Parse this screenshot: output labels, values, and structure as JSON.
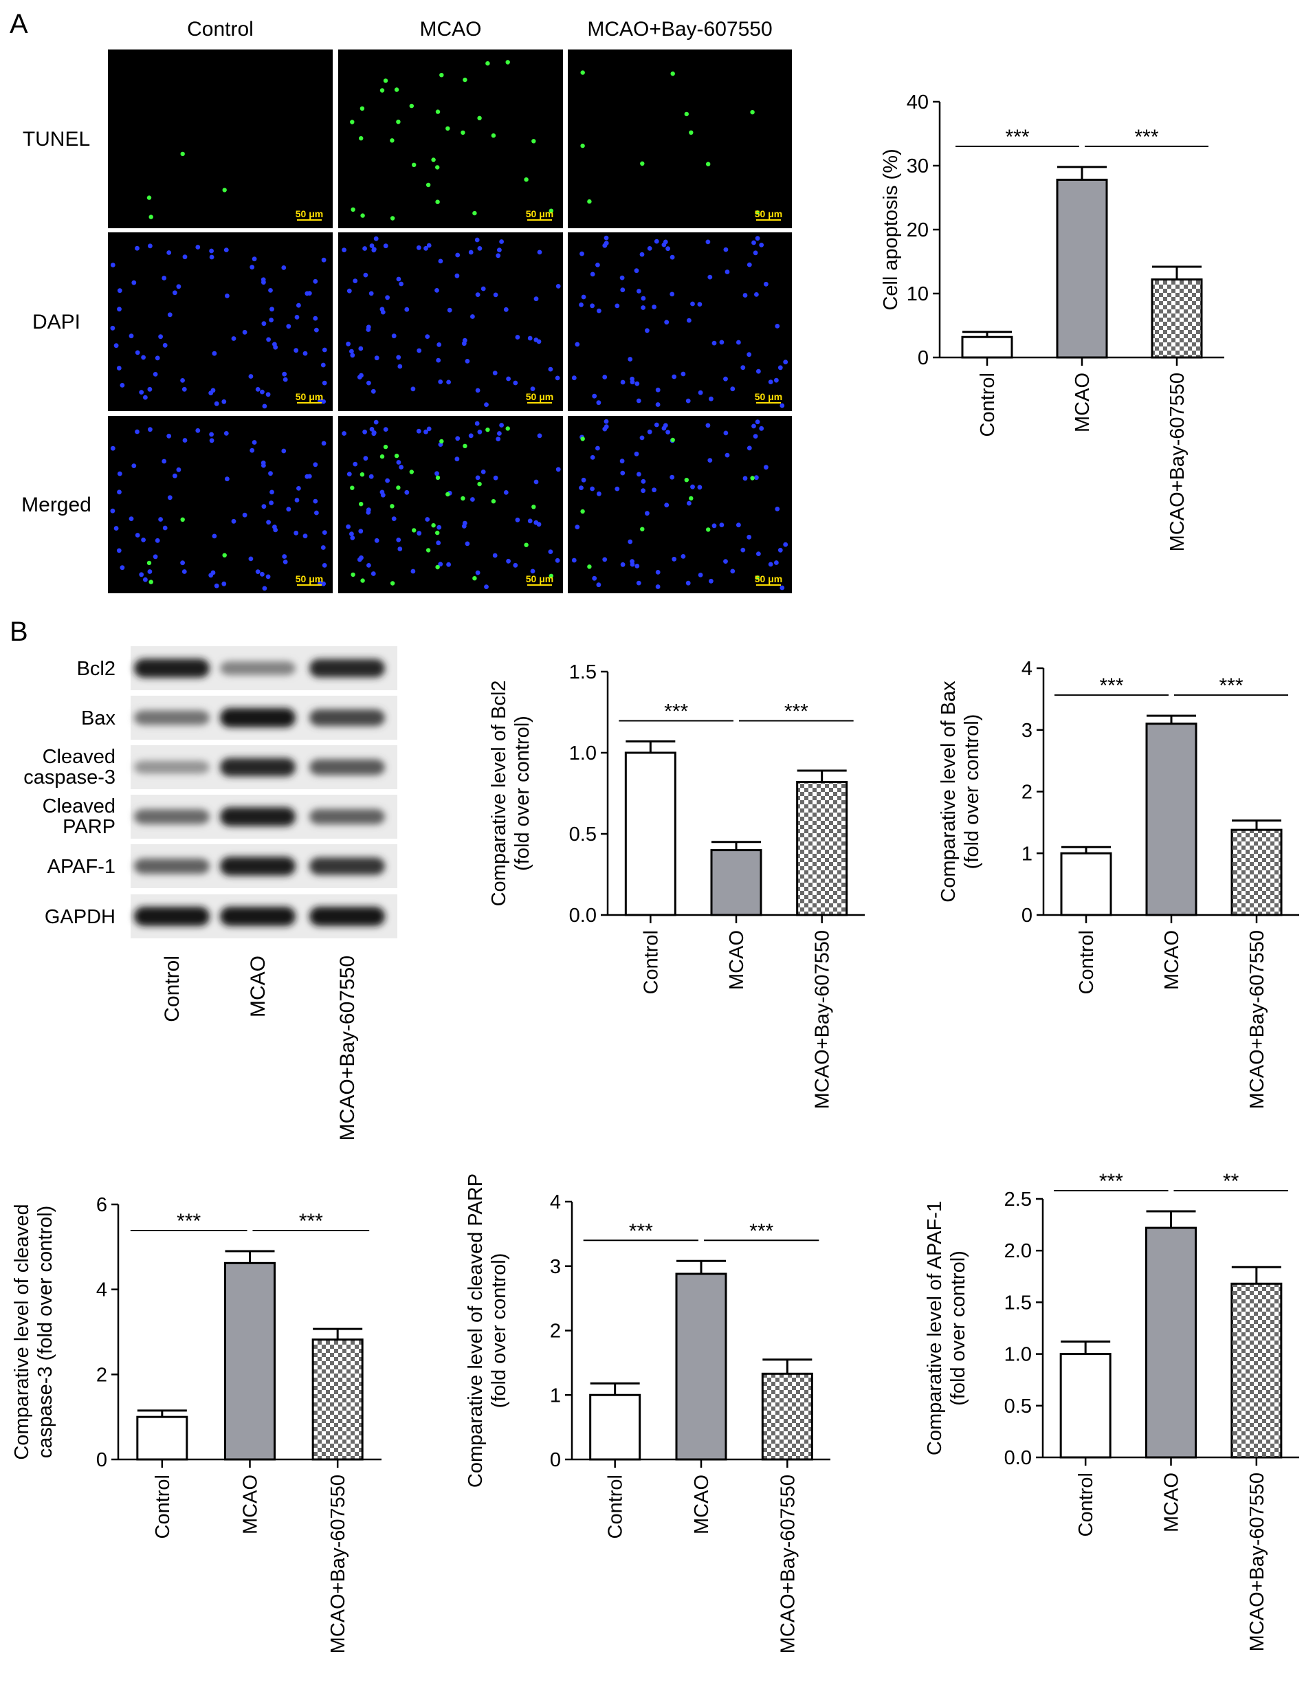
{
  "panel_labels": {
    "a": "A",
    "b": "B"
  },
  "micrographs": {
    "columns": [
      "Control",
      "MCAO",
      "MCAO+Bay-607550"
    ],
    "rows": [
      "TUNEL",
      "DAPI",
      "Merged"
    ],
    "scale_bar": "50 μm",
    "colors": {
      "tunel": "#3cff3c",
      "dapi": "#2a3cff",
      "background": "#000000",
      "scale": "#ffe000"
    }
  },
  "western_blot": {
    "rows": [
      {
        "label": "Bcl2",
        "intensities": [
          0.95,
          0.35,
          0.9
        ]
      },
      {
        "label": "Bax",
        "intensities": [
          0.45,
          1.0,
          0.7
        ]
      },
      {
        "label": "Cleaved caspase-3",
        "label_lines": [
          "Cleaved",
          "caspase-3"
        ],
        "intensities": [
          0.25,
          0.9,
          0.6
        ]
      },
      {
        "label": "Cleaved PARP",
        "label_lines": [
          "Cleaved",
          "PARP"
        ],
        "intensities": [
          0.5,
          0.95,
          0.55
        ]
      },
      {
        "label": "APAF-1",
        "intensities": [
          0.55,
          0.95,
          0.8
        ]
      },
      {
        "label": "GAPDH",
        "intensities": [
          1.0,
          1.0,
          1.0
        ]
      }
    ],
    "lanes": [
      "Control",
      "MCAO",
      "MCAO+Bay-607550"
    ]
  },
  "chart_data": [
    {
      "type": "bar",
      "categories": [
        "Control",
        "MCAO",
        "MCAO+Bay-607550"
      ],
      "values": [
        3.2,
        27.8,
        12.2
      ],
      "errors": [
        0.8,
        2.0,
        2.0
      ],
      "ylabel_lines": [
        "Cell apoptosis (%)"
      ],
      "ylim": [
        0,
        40
      ],
      "yticks": [
        0,
        10,
        20,
        30,
        40
      ],
      "tick_labels": [
        "0",
        "10",
        "20",
        "30",
        "40"
      ],
      "significance": [
        {
          "from": 0,
          "to": 1,
          "label": "***"
        },
        {
          "from": 1,
          "to": 2,
          "label": "***"
        }
      ]
    },
    {
      "type": "bar",
      "categories": [
        "Control",
        "MCAO",
        "MCAO+Bay-607550"
      ],
      "values": [
        1.0,
        0.4,
        0.82
      ],
      "errors": [
        0.07,
        0.05,
        0.07
      ],
      "ylabel_lines": [
        "Comparative level of Bcl2",
        "(fold over control)"
      ],
      "ylim": [
        0,
        1.5
      ],
      "yticks": [
        0,
        0.5,
        1.0,
        1.5
      ],
      "tick_labels": [
        "0.0",
        "0.5",
        "1.0",
        "1.5"
      ],
      "significance": [
        {
          "from": 0,
          "to": 1,
          "label": "***"
        },
        {
          "from": 1,
          "to": 2,
          "label": "***"
        }
      ]
    },
    {
      "type": "bar",
      "categories": [
        "Control",
        "MCAO",
        "MCAO+Bay-607550"
      ],
      "values": [
        1.0,
        3.1,
        1.38
      ],
      "errors": [
        0.1,
        0.13,
        0.15
      ],
      "ylabel_lines": [
        "Comparative level of Bax",
        "(fold over control)"
      ],
      "ylim": [
        0,
        4
      ],
      "yticks": [
        0,
        1,
        2,
        3,
        4
      ],
      "tick_labels": [
        "0",
        "1",
        "2",
        "3",
        "4"
      ],
      "significance": [
        {
          "from": 0,
          "to": 1,
          "label": "***"
        },
        {
          "from": 1,
          "to": 2,
          "label": "***"
        }
      ]
    },
    {
      "type": "bar",
      "categories": [
        "Control",
        "MCAO",
        "MCAO+Bay-607550"
      ],
      "values": [
        1.0,
        4.62,
        2.82
      ],
      "errors": [
        0.15,
        0.28,
        0.25
      ],
      "ylabel_lines": [
        "Comparative level of cleaved",
        "caspase-3 (fold over control)"
      ],
      "ylim": [
        0,
        6
      ],
      "yticks": [
        0,
        2,
        4,
        6
      ],
      "tick_labels": [
        "0",
        "2",
        "4",
        "6"
      ],
      "significance": [
        {
          "from": 0,
          "to": 1,
          "label": "***"
        },
        {
          "from": 1,
          "to": 2,
          "label": "***"
        }
      ]
    },
    {
      "type": "bar",
      "categories": [
        "Control",
        "MCAO",
        "MCAO+Bay-607550"
      ],
      "values": [
        1.0,
        2.88,
        1.33
      ],
      "errors": [
        0.18,
        0.2,
        0.22
      ],
      "ylabel_lines": [
        "Comparative level of cleaved PARP",
        "(fold over control)"
      ],
      "ylim": [
        0,
        4
      ],
      "yticks": [
        0,
        1,
        2,
        3,
        4
      ],
      "tick_labels": [
        "0",
        "1",
        "2",
        "3",
        "4"
      ],
      "significance": [
        {
          "from": 0,
          "to": 1,
          "label": "***"
        },
        {
          "from": 1,
          "to": 2,
          "label": "***"
        }
      ]
    },
    {
      "type": "bar",
      "categories": [
        "Control",
        "MCAO",
        "MCAO+Bay-607550"
      ],
      "values": [
        1.0,
        2.22,
        1.68
      ],
      "errors": [
        0.12,
        0.16,
        0.16
      ],
      "ylabel_lines": [
        "Comparative level of APAF-1",
        "(fold over control)"
      ],
      "ylim": [
        0,
        2.5
      ],
      "yticks": [
        0,
        0.5,
        1.0,
        1.5,
        2.0,
        2.5
      ],
      "tick_labels": [
        "0.0",
        "0.5",
        "1.0",
        "1.5",
        "2.0",
        "2.5"
      ],
      "significance": [
        {
          "from": 0,
          "to": 1,
          "label": "***"
        },
        {
          "from": 1,
          "to": 2,
          "label": "**"
        }
      ]
    }
  ]
}
